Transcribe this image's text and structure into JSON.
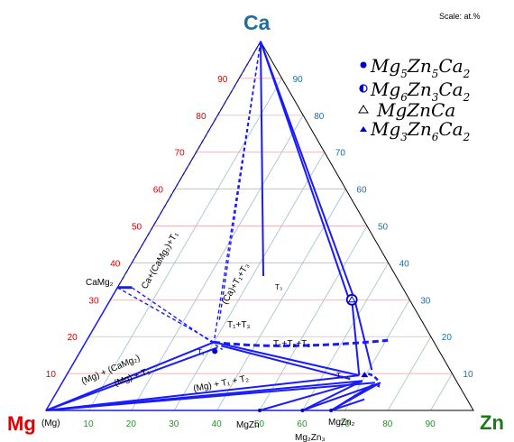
{
  "header": {
    "scale": "Scale: at.%"
  },
  "corners": {
    "top": "Ca",
    "left": "Mg",
    "right": "Zn"
  },
  "colors": {
    "ca": "#1f6f9e",
    "mg": "#e00000",
    "zn": "#1a7a1a",
    "phase_line": "#1a1aff",
    "grid_red": "#e4a0a0",
    "grid_blue": "#a0c0dc",
    "grid_green": "#a8cca8"
  },
  "ticks": {
    "ca_red": [
      "10",
      "20",
      "30",
      "40",
      "50",
      "60",
      "70",
      "80",
      "90"
    ],
    "ca_blue": [
      "90",
      "80",
      "70",
      "60",
      "50",
      "40",
      "30",
      "20",
      "10"
    ],
    "zn_green": [
      "10",
      "20",
      "30",
      "40",
      "50",
      "60",
      "70",
      "80",
      "90"
    ]
  },
  "legend": [
    {
      "icon": "filled-circle",
      "base": [
        "Mg",
        "Zn",
        "Ca"
      ],
      "subs": [
        "5",
        "5",
        "2"
      ]
    },
    {
      "icon": "half-circle",
      "base": [
        "Mg",
        "Zn",
        "Ca"
      ],
      "subs": [
        "6",
        "3",
        "2"
      ]
    },
    {
      "icon": "open-triangle",
      "base": [
        "MgZnCa"
      ],
      "subs": [
        ""
      ]
    },
    {
      "icon": "filled-triangle",
      "base": [
        "Mg",
        "Zn",
        "Ca"
      ],
      "subs": [
        "3",
        "6",
        "2"
      ]
    }
  ],
  "phase_labels": {
    "camg2": "CaMg₂",
    "mg_solid": "(Mg)",
    "mgzn": "MgZn",
    "mgzn2": "MgZn₂",
    "mg2zn3": "Mg₂Zn₃",
    "t3": "T₃",
    "t1": "T₁",
    "t2": "T₂",
    "ca_camg2_t1": "Ca+(CaMg₂)+T₁",
    "ca_t1_t3": "(Ca)+T₁+T₃",
    "t1_t3": "T₁+T₃",
    "t1_t2_t3": "T₁+T₂+T₃",
    "mg_camg2": "(Mg) + (CaMg₂)",
    "mg_t1": "(Mg) + T₁",
    "mg_t1_t2": "(Mg) + T₁ + T₂"
  },
  "diagram": {
    "type": "ternary-phase-diagram",
    "system": [
      "Mg",
      "Zn",
      "Ca"
    ],
    "composition_unit": "at.%",
    "points": {
      "CaMg2": {
        "ca": 33.3,
        "zn": 0
      },
      "T1": {
        "ca": 13,
        "zn": 33
      },
      "T3": {
        "ca": 30,
        "zn": 56
      },
      "T2": {
        "ca": 10,
        "zn": 69
      },
      "MgZn": {
        "ca": 0,
        "zn": 50
      },
      "MgZn2": {
        "ca": 0,
        "zn": 66.7
      },
      "Mg2Zn3": {
        "ca": 0,
        "zn": 60
      }
    }
  }
}
